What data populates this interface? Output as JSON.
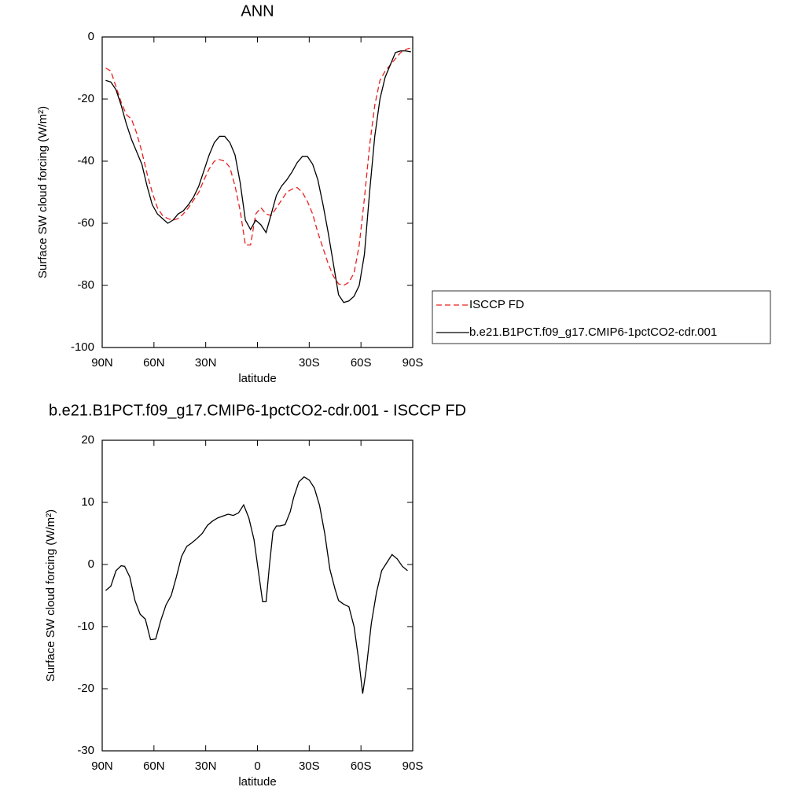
{
  "chart_data": [
    {
      "type": "line",
      "title": "ANN",
      "xlabel": "latitude",
      "ylabel": "Surface SW cloud forcing (W/m²)",
      "x": [
        88,
        85,
        82,
        79,
        76,
        73,
        70,
        67,
        64,
        61,
        58,
        55,
        52,
        49,
        46,
        43,
        40,
        37,
        34,
        31,
        28,
        25,
        22,
        19,
        16,
        13,
        10,
        7,
        4,
        1,
        -2,
        -5,
        -8,
        -11,
        -14,
        -17,
        -20,
        -23,
        -26,
        -29,
        -32,
        -35,
        -38,
        -41,
        -44,
        -47,
        -50,
        -53,
        -56,
        -59,
        -62,
        -65,
        -68,
        -71,
        -74,
        -77,
        -80,
        -83,
        -86,
        -89
      ],
      "series": [
        {
          "name": "ISCCP FD",
          "color": "#e8201c",
          "dash": true,
          "values": [
            -10,
            -11,
            -16,
            -21,
            -25,
            -26.5,
            -31,
            -37,
            -44,
            -50,
            -55,
            -57.5,
            -58.5,
            -59,
            -58.5,
            -57,
            -55,
            -52.5,
            -50,
            -46,
            -42.5,
            -40,
            -39.5,
            -40,
            -42,
            -48,
            -56,
            -67,
            -67,
            -57,
            -55,
            -57,
            -57.5,
            -55,
            -52.5,
            -50,
            -49,
            -48.5,
            -50,
            -53,
            -57,
            -63,
            -68,
            -73,
            -77,
            -79.5,
            -80,
            -79,
            -76,
            -67,
            -52,
            -35,
            -22,
            -14,
            -11,
            -9,
            -7,
            -5,
            -4,
            -3.5
          ]
        },
        {
          "name": "b.e21.B1PCT.f09_g17.CMIP6-1pctCO2-cdr.001",
          "color": "#000000",
          "dash": false,
          "values": [
            -14,
            -14.5,
            -17,
            -22,
            -28,
            -33,
            -37,
            -41,
            -48,
            -54,
            -57,
            -58.5,
            -60,
            -59,
            -57,
            -56,
            -54,
            -51.5,
            -48,
            -43,
            -38,
            -34,
            -32,
            -32,
            -34,
            -38,
            -47,
            -59,
            -62,
            -59,
            -60.5,
            -63,
            -57,
            -51,
            -48,
            -46,
            -43.5,
            -40.5,
            -38.5,
            -38.5,
            -41,
            -46,
            -54,
            -63,
            -73,
            -83,
            -85.5,
            -85,
            -83.5,
            -80,
            -70,
            -50,
            -32,
            -20,
            -13,
            -9,
            -5,
            -4.5,
            -4.5,
            -4.8
          ]
        }
      ],
      "xlim": [
        90,
        -90
      ],
      "xticks": [
        {
          "value": 90,
          "label": "90N"
        },
        {
          "value": 60,
          "label": "60N"
        },
        {
          "value": 30,
          "label": "30N"
        },
        {
          "value": 0,
          "label": null
        },
        {
          "value": -30,
          "label": "30S"
        },
        {
          "value": -60,
          "label": "60S"
        },
        {
          "value": -90,
          "label": "90S"
        }
      ],
      "ylim": [
        -100,
        0
      ],
      "yticks": [
        0,
        -20,
        -40,
        -60,
        -80,
        -100
      ],
      "legend": "right"
    },
    {
      "type": "line",
      "title": "b.e21.B1PCT.f09_g17.CMIP6-1pctCO2-cdr.001 - ISCCP FD",
      "xlabel": "latitude",
      "ylabel": "Surface SW cloud forcing (W/m²)",
      "x": [
        88,
        85,
        82,
        79,
        77,
        74,
        71,
        68,
        65,
        62,
        59,
        56,
        53,
        50,
        47,
        44,
        41,
        38,
        35,
        32,
        29,
        26,
        23,
        20,
        17,
        14,
        11,
        8,
        5,
        2,
        -1,
        -3,
        -5,
        -7,
        -9,
        -11,
        -13,
        -16,
        -19,
        -21,
        -24,
        -27,
        -30,
        -33,
        -36,
        -39,
        -42,
        -45,
        -47,
        -50,
        -53,
        -56,
        -59,
        -61,
        -63,
        -66,
        -69,
        -72,
        -75,
        -78,
        -81,
        -84,
        -87
      ],
      "series": [
        {
          "color": "#000000",
          "dash": false,
          "values": [
            -4.2,
            -3.5,
            -1,
            -0.2,
            -0.3,
            -2,
            -5.8,
            -8,
            -8.8,
            -12.1,
            -12,
            -9,
            -6.5,
            -5,
            -2,
            1.3,
            2.9,
            3.5,
            4.2,
            5,
            6.3,
            7,
            7.5,
            7.8,
            8.1,
            7.9,
            8.3,
            9.6,
            7.5,
            4,
            -2,
            -6,
            -6,
            0,
            5.3,
            6.2,
            6.2,
            6.4,
            8.5,
            10.8,
            13.3,
            14.1,
            13.6,
            12.3,
            9.5,
            5,
            -0.8,
            -4,
            -5.8,
            -6.4,
            -6.8,
            -10,
            -16,
            -20.8,
            -17,
            -9.5,
            -4.5,
            -1,
            0.3,
            1.6,
            0.9,
            -0.3,
            -1
          ]
        }
      ],
      "xlim": [
        90,
        -90
      ],
      "xticks": [
        {
          "value": 90,
          "label": "90N"
        },
        {
          "value": 60,
          "label": "60N"
        },
        {
          "value": 30,
          "label": "30N"
        },
        0,
        {
          "value": -30,
          "label": "30S"
        },
        {
          "value": -60,
          "label": "60S"
        },
        {
          "value": -90,
          "label": "90S"
        }
      ],
      "ylim": [
        -30,
        20
      ],
      "yticks": [
        20,
        10,
        0,
        -10,
        -20,
        -30
      ]
    }
  ]
}
